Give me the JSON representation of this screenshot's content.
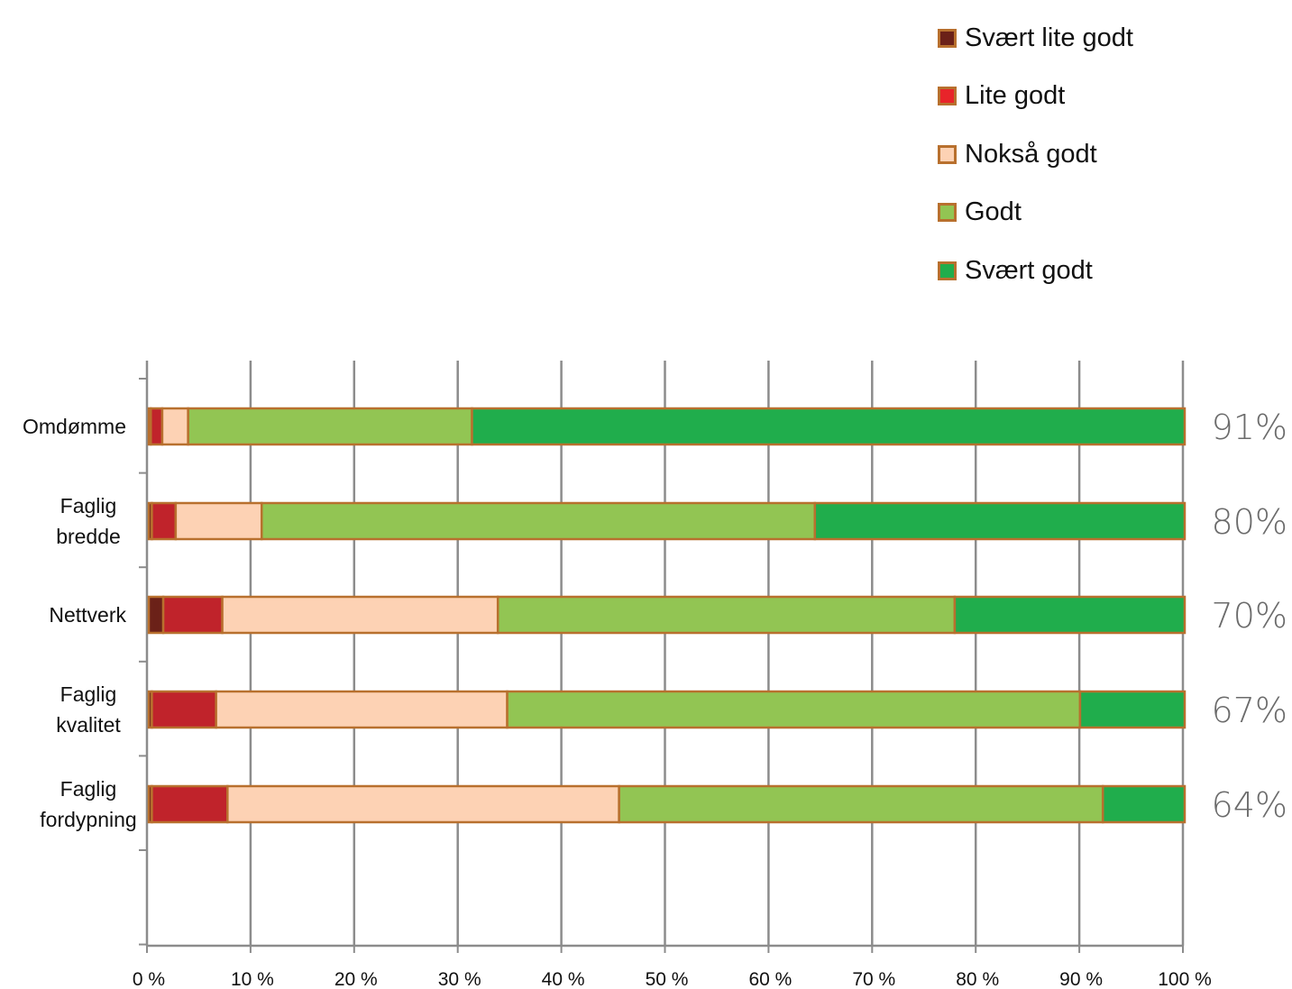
{
  "chart_data": {
    "type": "bar",
    "orientation": "horizontal",
    "stacked": true,
    "title": "",
    "xlabel": "",
    "ylabel": "",
    "xlim": [
      0,
      100
    ],
    "x_ticks": [
      "0 %",
      "10 %",
      "20 %",
      "30 %",
      "40 %",
      "50 %",
      "60 %",
      "70 %",
      "80 %",
      "90 %",
      "100 %"
    ],
    "categories": [
      "Omdømme",
      "Faglig bredde",
      "Nettverk",
      "Faglig kvalitet",
      "Faglig fordypning"
    ],
    "category_lines": [
      [
        "Omdømme"
      ],
      [
        "Faglig",
        "bredde"
      ],
      [
        "Nettverk"
      ],
      [
        "Faglig",
        "kvalitet"
      ],
      [
        "Faglig",
        "fordypning"
      ]
    ],
    "series": [
      {
        "name": "Svært lite godt",
        "color": "#6b2118",
        "values": [
          0.2,
          0.3,
          1.4,
          0.3,
          0.3
        ]
      },
      {
        "name": "Lite godt",
        "color": "#c0232b",
        "values": [
          1.1,
          2.3,
          5.7,
          6.2,
          7.3
        ]
      },
      {
        "name": "Nokså godt",
        "color": "#fdd2b4",
        "values": [
          2.5,
          8.3,
          26.6,
          28.1,
          37.8
        ]
      },
      {
        "name": "Godt",
        "color": "#92c553",
        "values": [
          27.4,
          53.4,
          44.1,
          55.3,
          46.7
        ]
      },
      {
        "name": "Svært godt",
        "color": "#20ad4c",
        "values": [
          68.8,
          35.7,
          22.2,
          10.1,
          7.9
        ]
      }
    ],
    "legend_swatch_colors": [
      "#6b2118",
      "#e8242a",
      "#fdd2b4",
      "#92c553",
      "#20ad4c"
    ],
    "right_labels": [
      "91%",
      "80%",
      "70%",
      "67%",
      "64%"
    ],
    "grid": true,
    "legend_position": "top-right",
    "bar_border_color": "#b8702e"
  }
}
